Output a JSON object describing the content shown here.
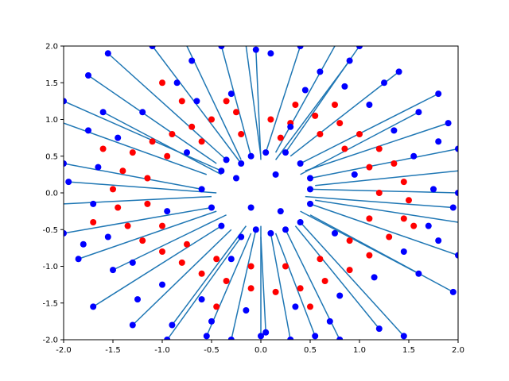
{
  "chart_data": {
    "type": "scatter",
    "title": "",
    "xlabel": "",
    "ylabel": "",
    "xlim": [
      -2.0,
      2.0
    ],
    "ylim": [
      -2.0,
      2.0
    ],
    "grid": false,
    "legend": "none",
    "x_ticks": [
      "-2.0",
      "-1.5",
      "-1.0",
      "-0.5",
      "0.0",
      "0.5",
      "1.0",
      "1.5",
      "2.0"
    ],
    "y_ticks": [
      "-2.0",
      "-1.5",
      "-1.0",
      "-0.5",
      "0.0",
      "0.5",
      "1.0",
      "1.5",
      "2.0"
    ],
    "series": [
      {
        "color": "#0000ff",
        "marker": "circle"
      },
      {
        "color": "#ff0000",
        "marker": "circle"
      },
      {
        "color": "#1f77b4",
        "style": "line-segments"
      }
    ],
    "red_points": [
      [
        0.1,
        1.0
      ],
      [
        0.3,
        0.95
      ],
      [
        0.55,
        1.05
      ],
      [
        0.8,
        0.95
      ],
      [
        -0.25,
        1.1
      ],
      [
        -0.5,
        1.0
      ],
      [
        -0.7,
        0.9
      ],
      [
        -0.9,
        0.8
      ],
      [
        -1.1,
        0.7
      ],
      [
        -1.3,
        0.55
      ],
      [
        -1.4,
        0.3
      ],
      [
        -1.5,
        0.05
      ],
      [
        -1.45,
        -0.2
      ],
      [
        -1.35,
        -0.45
      ],
      [
        -1.2,
        -0.65
      ],
      [
        -1.0,
        -0.8
      ],
      [
        -0.8,
        -0.95
      ],
      [
        -0.6,
        -1.1
      ],
      [
        -0.35,
        -1.2
      ],
      [
        -0.1,
        -1.3
      ],
      [
        0.15,
        -1.35
      ],
      [
        0.4,
        -1.3
      ],
      [
        0.65,
        -1.2
      ],
      [
        0.9,
        -1.05
      ],
      [
        1.1,
        -0.85
      ],
      [
        1.3,
        -0.6
      ],
      [
        1.45,
        -0.35
      ],
      [
        1.5,
        -0.1
      ],
      [
        1.45,
        0.15
      ],
      [
        1.35,
        0.4
      ],
      [
        1.2,
        0.6
      ],
      [
        1.0,
        0.8
      ],
      [
        0.6,
        0.8
      ],
      [
        0.2,
        0.75
      ],
      [
        -0.2,
        0.8
      ],
      [
        -0.6,
        0.7
      ],
      [
        -0.95,
        0.5
      ],
      [
        -1.15,
        0.2
      ],
      [
        -1.15,
        -0.15
      ],
      [
        -1.0,
        -0.45
      ],
      [
        -0.75,
        -0.7
      ],
      [
        -0.45,
        -0.9
      ],
      [
        -0.1,
        -1.0
      ],
      [
        0.25,
        -1.0
      ],
      [
        0.6,
        -0.9
      ],
      [
        0.9,
        -0.65
      ],
      [
        1.1,
        -0.35
      ],
      [
        1.2,
        0.0
      ],
      [
        1.1,
        0.35
      ],
      [
        0.85,
        0.6
      ],
      [
        -1.0,
        1.5
      ],
      [
        -0.8,
        1.25
      ],
      [
        -0.35,
        1.25
      ],
      [
        0.35,
        1.2
      ],
      [
        0.75,
        1.2
      ],
      [
        -1.6,
        0.6
      ],
      [
        -1.7,
        -0.4
      ],
      [
        -0.45,
        -1.55
      ],
      [
        0.5,
        -1.55
      ],
      [
        1.55,
        -0.45
      ]
    ],
    "segments": [
      [
        -1.1,
        2.0,
        -0.2,
        0.4
      ],
      [
        -2.0,
        1.25,
        -0.4,
        0.3
      ],
      [
        -2.0,
        0.4,
        -0.6,
        0.05
      ],
      [
        -2.0,
        -0.55,
        -0.5,
        -0.2
      ],
      [
        -1.7,
        -1.55,
        -0.4,
        -0.45
      ],
      [
        -0.95,
        -2.0,
        -0.2,
        -0.6
      ],
      [
        -0.3,
        -2.0,
        -0.05,
        -0.5
      ],
      [
        0.3,
        -2.0,
        0.1,
        -0.55
      ],
      [
        0.8,
        -2.0,
        0.25,
        -0.5
      ],
      [
        1.45,
        -1.95,
        0.4,
        -0.4
      ],
      [
        2.0,
        -0.85,
        0.5,
        -0.15
      ],
      [
        2.0,
        0.0,
        0.5,
        0.05
      ],
      [
        2.0,
        0.6,
        0.5,
        0.2
      ],
      [
        1.8,
        1.35,
        0.4,
        0.4
      ],
      [
        1.0,
        2.0,
        0.25,
        0.55
      ],
      [
        0.4,
        2.0,
        0.05,
        0.55
      ],
      [
        -0.4,
        2.0,
        -0.1,
        0.5
      ],
      [
        -1.55,
        1.9,
        -0.35,
        0.45
      ],
      [
        -2.0,
        0.95,
        -0.55,
        0.25
      ],
      [
        -2.0,
        -0.15,
        -0.5,
        -0.05
      ],
      [
        -1.85,
        -0.9,
        -0.45,
        -0.25
      ],
      [
        -1.3,
        -1.8,
        -0.3,
        -0.5
      ],
      [
        -0.55,
        -1.95,
        -0.1,
        -0.55
      ],
      [
        0.05,
        -1.9,
        0.0,
        -0.6
      ],
      [
        0.55,
        -1.95,
        0.15,
        -0.55
      ],
      [
        1.2,
        -1.85,
        0.35,
        -0.45
      ],
      [
        1.95,
        -1.35,
        0.5,
        -0.3
      ],
      [
        2.0,
        -0.4,
        0.55,
        -0.1
      ],
      [
        2.0,
        0.3,
        0.55,
        0.1
      ],
      [
        1.9,
        0.95,
        0.45,
        0.3
      ],
      [
        1.4,
        1.65,
        0.3,
        0.5
      ],
      [
        0.75,
        2.0,
        0.15,
        0.55
      ],
      [
        -0.15,
        2.0,
        0.0,
        0.5
      ],
      [
        -0.75,
        2.0,
        -0.2,
        0.45
      ],
      [
        -1.75,
        1.6,
        -0.45,
        0.4
      ],
      [
        -1.6,
        1.1,
        -0.4,
        0.25
      ],
      [
        -1.5,
        -1.05,
        -0.35,
        -0.3
      ],
      [
        1.6,
        -1.1,
        0.4,
        -0.25
      ],
      [
        1.6,
        1.1,
        0.4,
        0.25
      ],
      [
        -0.9,
        -1.8,
        -0.15,
        -0.45
      ],
      [
        0.9,
        1.8,
        0.15,
        0.45
      ],
      [
        -1.95,
        0.15,
        -0.45,
        0.0
      ],
      [
        1.95,
        -0.2,
        0.45,
        -0.05
      ],
      [
        -0.05,
        1.95,
        0.0,
        0.45
      ],
      [
        0.0,
        -1.95,
        0.0,
        -0.45
      ]
    ],
    "blue_points": [
      [
        -1.1,
        2.0
      ],
      [
        -2.0,
        1.25
      ],
      [
        -2.0,
        0.4
      ],
      [
        -2.0,
        -0.55
      ],
      [
        -1.7,
        -1.55
      ],
      [
        -0.95,
        -2.0
      ],
      [
        -0.3,
        -2.0
      ],
      [
        0.3,
        -2.0
      ],
      [
        0.8,
        -2.0
      ],
      [
        1.45,
        -1.95
      ],
      [
        2.0,
        -0.85
      ],
      [
        2.0,
        0.0
      ],
      [
        2.0,
        0.6
      ],
      [
        1.8,
        1.35
      ],
      [
        1.0,
        2.0
      ],
      [
        0.4,
        2.0
      ],
      [
        -0.4,
        2.0
      ],
      [
        -1.55,
        1.9
      ],
      [
        -1.85,
        -0.9
      ],
      [
        -1.3,
        -1.8
      ],
      [
        -0.55,
        -1.95
      ],
      [
        0.05,
        -1.9
      ],
      [
        0.55,
        -1.95
      ],
      [
        1.2,
        -1.85
      ],
      [
        1.95,
        -1.35
      ],
      [
        1.9,
        0.95
      ],
      [
        1.4,
        1.65
      ],
      [
        -1.75,
        1.6
      ],
      [
        -1.6,
        1.1
      ],
      [
        -1.5,
        -1.05
      ],
      [
        1.6,
        -1.1
      ],
      [
        1.6,
        1.1
      ],
      [
        -0.9,
        -1.8
      ],
      [
        0.9,
        1.8
      ],
      [
        -1.95,
        0.15
      ],
      [
        1.95,
        -0.2
      ],
      [
        -0.2,
        0.4
      ],
      [
        -0.4,
        0.3
      ],
      [
        -0.6,
        0.05
      ],
      [
        -0.5,
        -0.2
      ],
      [
        -0.4,
        -0.45
      ],
      [
        -0.2,
        -0.6
      ],
      [
        -0.05,
        -0.5
      ],
      [
        0.1,
        -0.55
      ],
      [
        0.25,
        -0.5
      ],
      [
        0.4,
        -0.4
      ],
      [
        0.5,
        -0.15
      ],
      [
        0.5,
        0.05
      ],
      [
        0.5,
        0.2
      ],
      [
        0.4,
        0.4
      ],
      [
        0.25,
        0.55
      ],
      [
        0.05,
        0.55
      ],
      [
        -0.1,
        0.5
      ],
      [
        -0.35,
        0.45
      ],
      [
        0.1,
        1.9
      ],
      [
        -0.85,
        1.5
      ],
      [
        -0.65,
        1.25
      ],
      [
        -0.3,
        1.35
      ],
      [
        0.45,
        1.4
      ],
      [
        0.85,
        1.45
      ],
      [
        1.1,
        1.2
      ],
      [
        1.35,
        0.85
      ],
      [
        1.55,
        0.5
      ],
      [
        1.75,
        0.05
      ],
      [
        1.7,
        -0.45
      ],
      [
        1.45,
        -0.8
      ],
      [
        1.15,
        -1.15
      ],
      [
        0.8,
        -1.4
      ],
      [
        0.35,
        -1.55
      ],
      [
        -0.15,
        -1.6
      ],
      [
        -0.6,
        -1.45
      ],
      [
        -1.0,
        -1.25
      ],
      [
        -1.3,
        -0.95
      ],
      [
        -1.55,
        -0.6
      ],
      [
        -1.7,
        -0.15
      ],
      [
        -1.65,
        0.35
      ],
      [
        -1.45,
        0.75
      ],
      [
        -1.2,
        1.1
      ],
      [
        -1.75,
        0.85
      ],
      [
        -1.8,
        -0.7
      ],
      [
        1.8,
        0.7
      ],
      [
        1.8,
        -0.65
      ],
      [
        -0.7,
        1.8
      ],
      [
        0.7,
        -1.75
      ],
      [
        -0.05,
        1.95
      ],
      [
        0.0,
        -1.95
      ],
      [
        0.6,
        1.65
      ],
      [
        -0.5,
        -1.75
      ],
      [
        1.25,
        1.5
      ],
      [
        -1.25,
        -1.45
      ],
      [
        0.95,
        0.25
      ],
      [
        -0.95,
        -0.25
      ],
      [
        0.3,
        0.9
      ],
      [
        -0.3,
        -0.9
      ],
      [
        0.75,
        -0.55
      ],
      [
        -0.75,
        0.55
      ],
      [
        0.2,
        -0.25
      ],
      [
        -0.25,
        0.2
      ],
      [
        0.15,
        0.25
      ],
      [
        -0.1,
        -0.2
      ]
    ]
  }
}
